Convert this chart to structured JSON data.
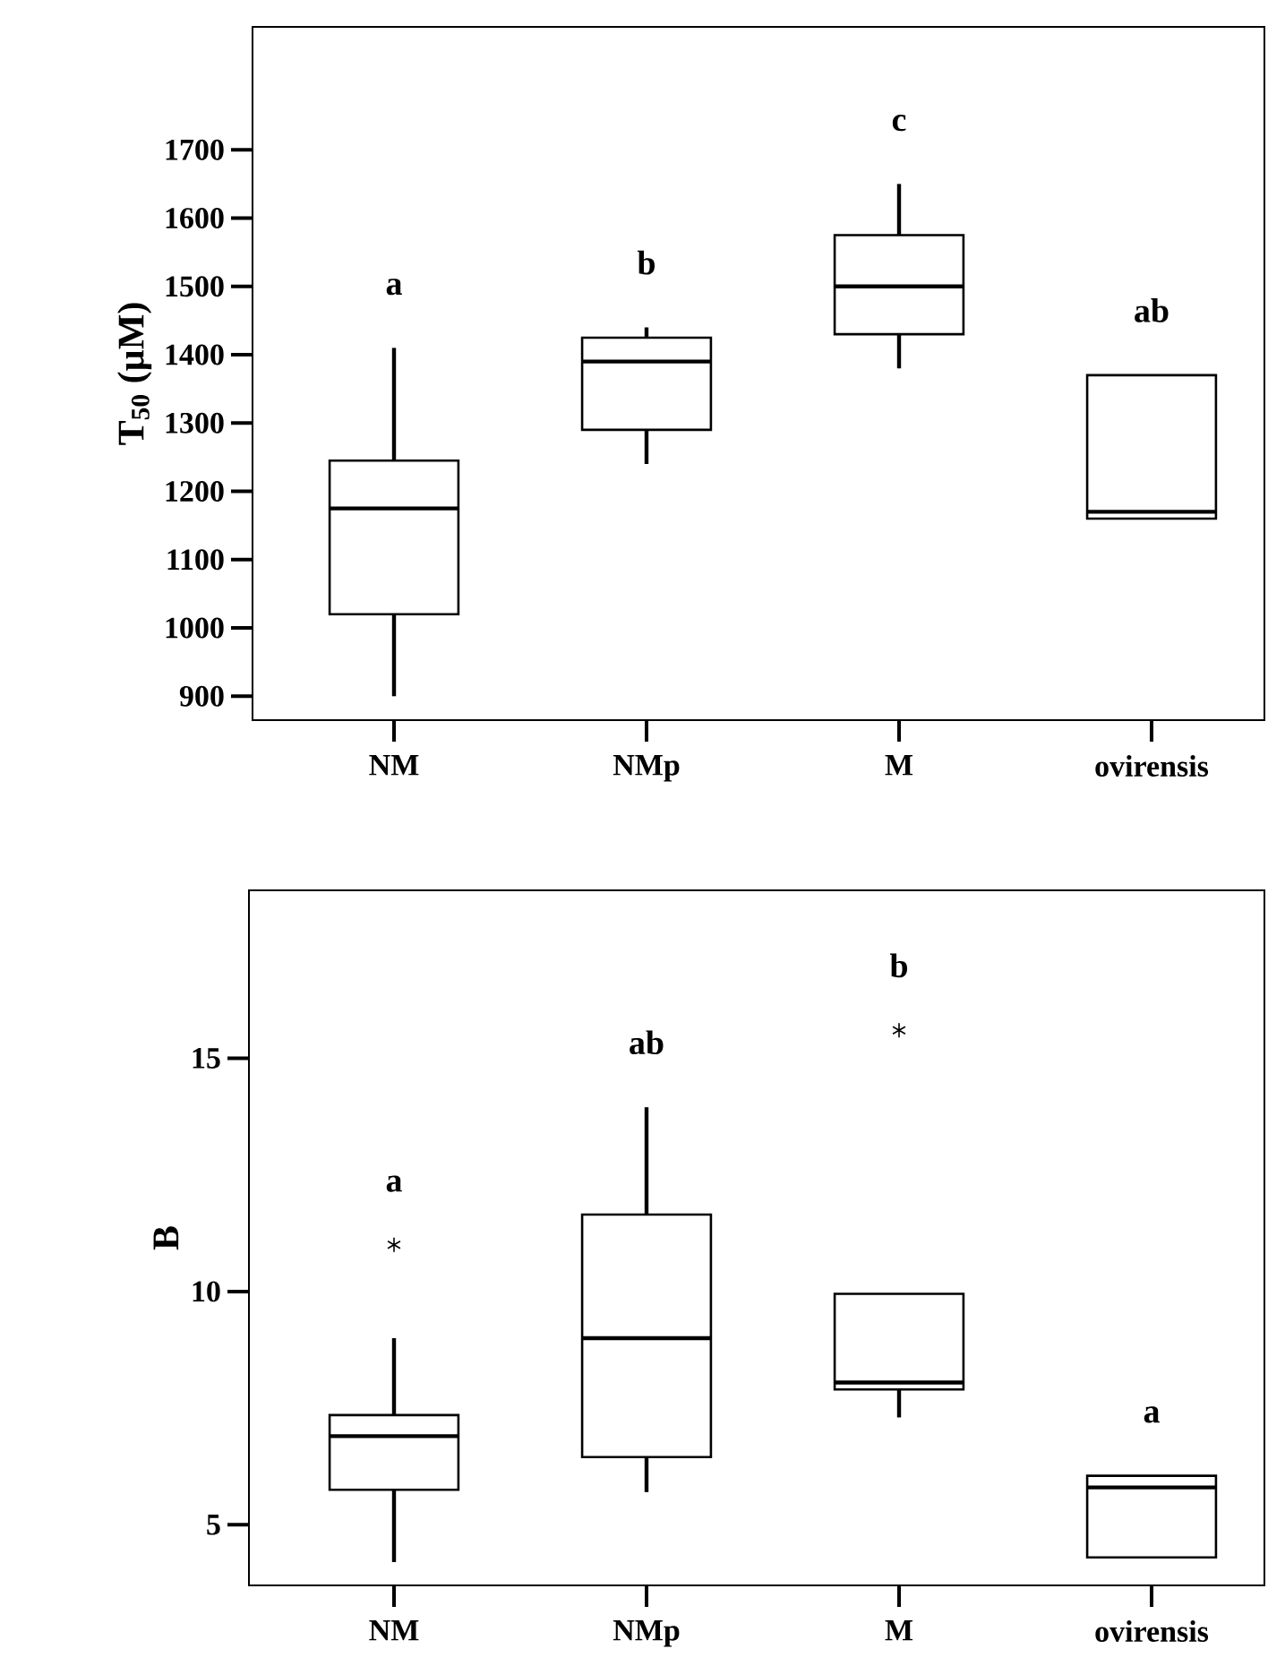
{
  "chart_data": [
    {
      "type": "box",
      "ylabel": "T$_{50}$ (µM)",
      "categories": [
        "NM",
        "NMp",
        "M",
        "ovirensis"
      ],
      "boxes": [
        {
          "low": 900,
          "q1": 1020,
          "median": 1175,
          "q3": 1245,
          "high": 1410
        },
        {
          "low": 1240,
          "q1": 1290,
          "median": 1390,
          "q3": 1425,
          "high": 1440
        },
        {
          "low": 1380,
          "q1": 1430,
          "median": 1500,
          "q3": 1575,
          "high": 1650
        },
        {
          "low": 1160,
          "q1": 1160,
          "median": 1170,
          "q3": 1370,
          "high": 1370
        }
      ],
      "ylim": [
        865,
        1880
      ],
      "yticks": [
        900,
        1000,
        1100,
        1200,
        1300,
        1400,
        1500,
        1600,
        1700
      ],
      "grid": false,
      "annotations": [
        "a",
        "b",
        "c",
        "ab"
      ]
    },
    {
      "type": "box",
      "ylabel": "B",
      "categories": [
        "NM",
        "NMp",
        "M",
        "ovirensis"
      ],
      "boxes": [
        {
          "low": 4.2,
          "q1": 5.75,
          "median": 6.9,
          "q3": 7.35,
          "high": 9.0,
          "outliers": [
            11.0
          ]
        },
        {
          "low": 5.7,
          "q1": 6.45,
          "median": 9.0,
          "q3": 11.65,
          "high": 13.95
        },
        {
          "low": 7.3,
          "q1": 7.9,
          "median": 8.05,
          "q3": 9.95,
          "high": 9.95,
          "outliers": [
            15.6
          ]
        },
        {
          "low": 4.3,
          "q1": 4.3,
          "median": 5.8,
          "q3": 6.05,
          "high": 6.05
        }
      ],
      "ylim": [
        3.7,
        18.6
      ],
      "yticks": [
        5,
        10,
        15
      ],
      "grid": false,
      "annotations": [
        "a",
        "ab",
        "b",
        "a"
      ]
    }
  ]
}
